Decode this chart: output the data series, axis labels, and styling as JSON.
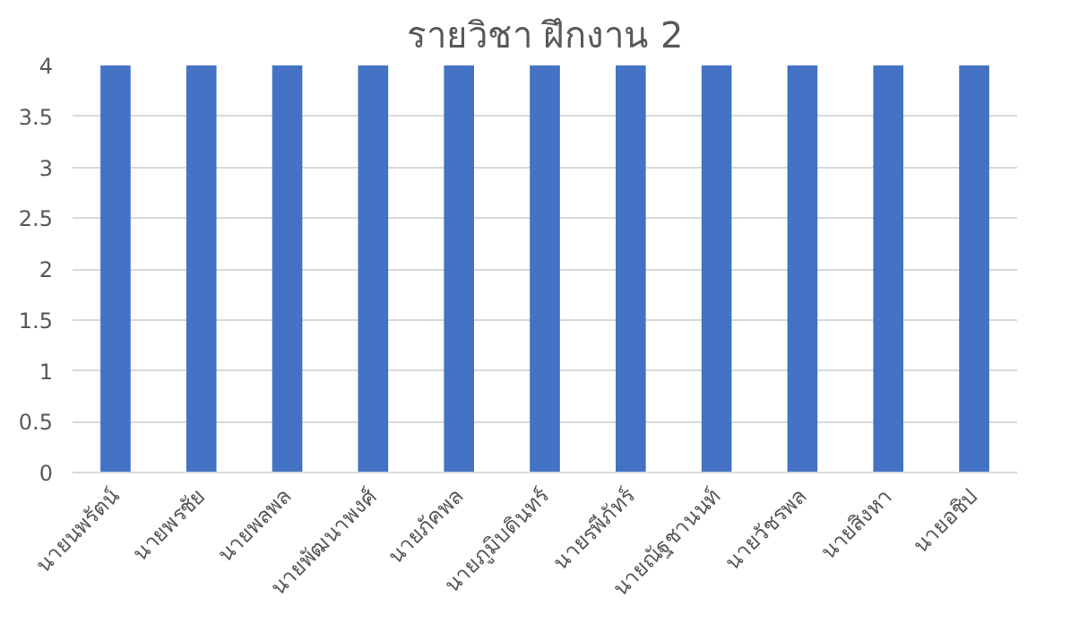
{
  "chart_data": {
    "type": "bar",
    "title": "รายวิชา ฝึกงาน 2",
    "categories": [
      "นายนพรัตน์",
      "นายพรชัย",
      "นายพลพล",
      "นายพัฒนาพงศ์",
      "นายภัคพล",
      "นายภูมิบดินทร์",
      "นายรพีภัทร์",
      "นายณัฐชานนท์",
      "นายวัชรพล",
      "นายสิงหา",
      "นายอชิป"
    ],
    "values": [
      4,
      4,
      4,
      4,
      4,
      4,
      4,
      4,
      4,
      4,
      4
    ],
    "color": "#4472c4",
    "ylim": [
      0,
      4
    ],
    "yticks": [
      0,
      0.5,
      1,
      1.5,
      2,
      2.5,
      3,
      3.5,
      4
    ],
    "grid": "y"
  }
}
